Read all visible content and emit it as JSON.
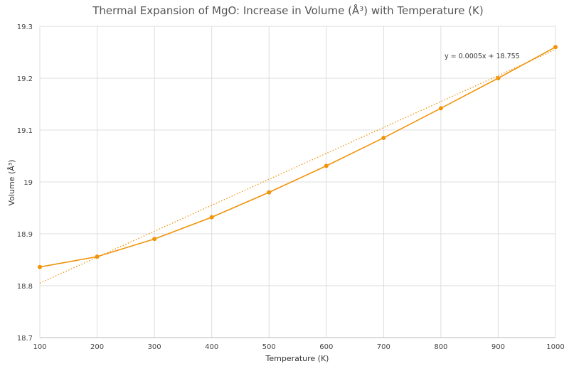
{
  "chart_data": {
    "type": "line",
    "title": "Thermal Expansion of MgO: Increase in Volume (Å³) with Temperature (K)",
    "xlabel": "Temperature (K)",
    "ylabel": "Volume (Å³)",
    "xlim": [
      100,
      1000
    ],
    "ylim": [
      18.7,
      19.3
    ],
    "x_ticks": [
      100,
      200,
      300,
      400,
      500,
      600,
      700,
      800,
      900,
      1000
    ],
    "y_ticks": [
      18.7,
      18.8,
      18.9,
      19,
      19.1,
      19.2,
      19.3
    ],
    "y_tick_labels": [
      "18.7",
      "18.8",
      "18.9",
      "19",
      "19.1",
      "19.2",
      "19.3"
    ],
    "grid": true,
    "series": [
      {
        "name": "Volume",
        "x": [
          100,
          200,
          300,
          400,
          500,
          600,
          700,
          800,
          900,
          1000
        ],
        "values": [
          18.836,
          18.856,
          18.89,
          18.932,
          18.98,
          19.031,
          19.085,
          19.142,
          19.2,
          19.26
        ]
      }
    ],
    "trendline": {
      "type": "linear",
      "slope": 0.0005,
      "intercept": 18.755,
      "equation_label": "y = 0.0005x + 18.755"
    },
    "colors": {
      "series": "#F0930A",
      "grid": "#dddddd",
      "text": "#444444"
    }
  }
}
